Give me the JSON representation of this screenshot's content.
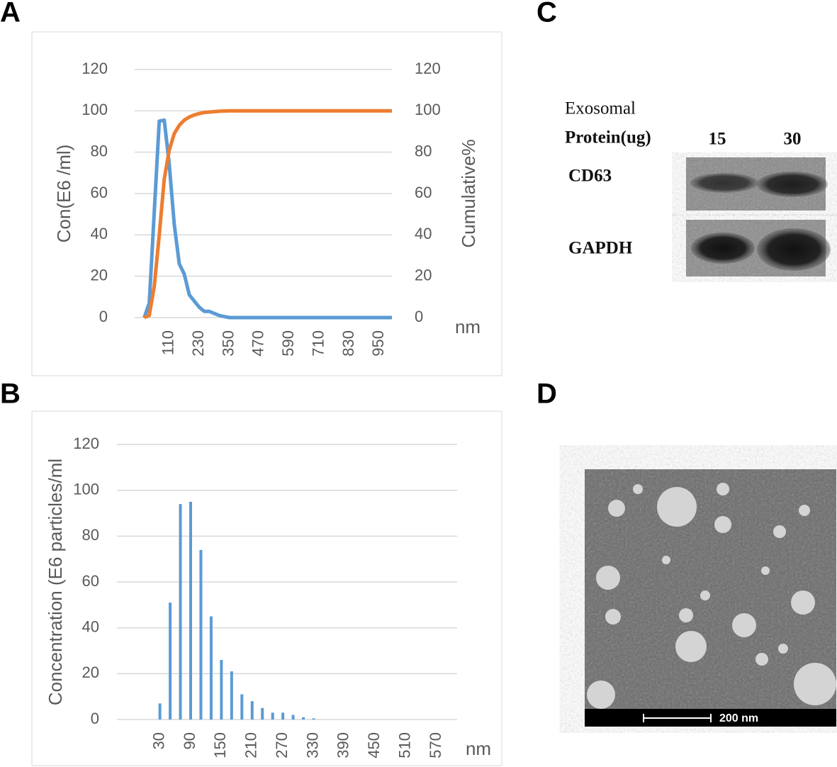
{
  "panels": [
    "A",
    "B",
    "C",
    "D"
  ],
  "chart_data": [
    {
      "type": "line",
      "x": [
        10,
        30,
        50,
        70,
        90,
        110,
        130,
        150,
        170,
        190,
        210,
        230,
        250,
        270,
        290,
        310,
        330,
        350,
        400,
        1000
      ],
      "series": [
        {
          "name": "Con(E6 /ml)",
          "color": "#5b9bd5",
          "values": [
            0,
            7,
            51,
            95,
            95.5,
            74,
            45,
            26,
            21,
            11,
            8,
            5,
            3,
            3,
            2,
            1,
            0.5,
            0,
            0,
            0
          ]
        },
        {
          "name": "Cumulative%",
          "color": "#ed7d31",
          "axis": "y2",
          "values": [
            0,
            1,
            15,
            40,
            67,
            81,
            89,
            93,
            95.5,
            97,
            98,
            98.7,
            99.2,
            99.4,
            99.6,
            99.8,
            99.9,
            100,
            100,
            100
          ]
        }
      ],
      "y_label": "Con(E6 /ml)",
      "y2_label": "Cumulative%",
      "x_label": "nm",
      "xlim": [
        0,
        1000
      ],
      "xticks": [
        110,
        230,
        350,
        470,
        590,
        710,
        830,
        950
      ],
      "ylim": [
        0,
        120
      ],
      "yticks": [
        0,
        20,
        40,
        60,
        80,
        100,
        120
      ],
      "y2lim": [
        0,
        120
      ],
      "y2ticks": [
        0,
        20,
        40,
        60,
        80,
        100,
        120
      ],
      "grid": true
    },
    {
      "type": "bar",
      "x": [
        30,
        50,
        70,
        90,
        110,
        130,
        150,
        170,
        190,
        210,
        230,
        250,
        270,
        290,
        310,
        330
      ],
      "values": [
        7,
        51,
        94,
        95,
        74,
        45,
        26,
        21,
        11,
        8,
        5,
        3,
        3,
        2,
        1,
        0.5
      ],
      "color": "#5b9bd5",
      "y_label": "Concentration (E6 particles/ml",
      "x_label": "nm",
      "xlim": [
        -40,
        610
      ],
      "xticks": [
        30,
        90,
        150,
        210,
        270,
        330,
        390,
        450,
        510,
        570
      ],
      "ylim": [
        0,
        120
      ],
      "yticks": [
        0,
        20,
        40,
        60,
        80,
        100,
        120
      ],
      "grid": true
    }
  ],
  "blot": {
    "header": [
      "Exosomal",
      "Protein(ug)"
    ],
    "lanes": [
      "15",
      "30"
    ],
    "rows": [
      "CD63",
      "GAPDH"
    ]
  },
  "micrograph": {
    "scale_bar": "200 nm"
  }
}
